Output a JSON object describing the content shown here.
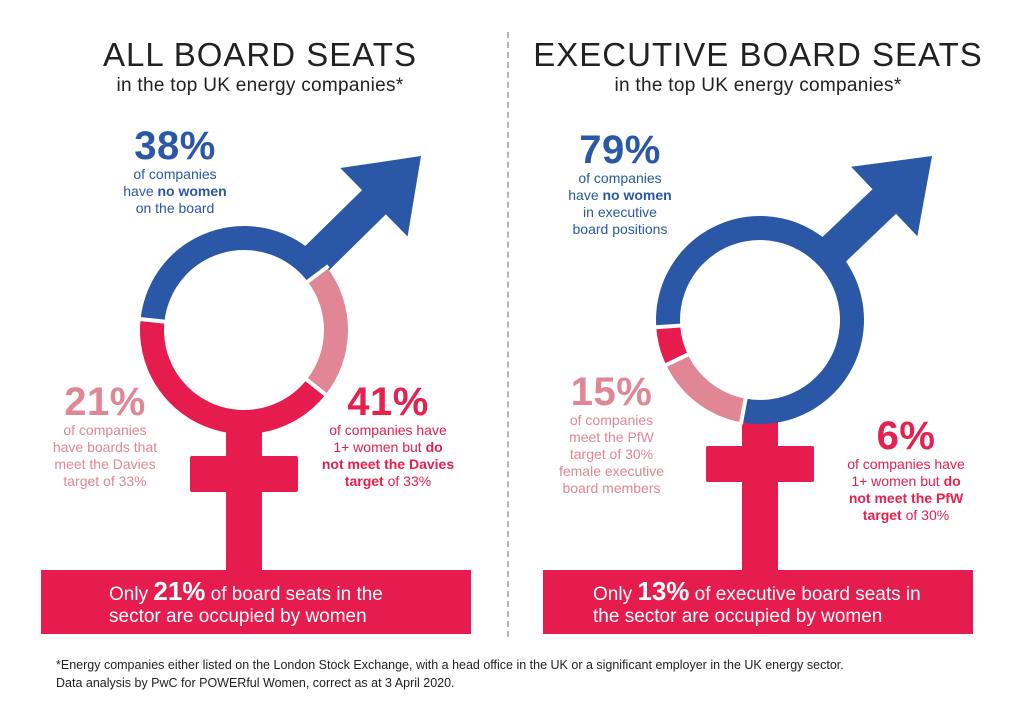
{
  "colors": {
    "no_women": "#2b58a6",
    "meet_target": "#e08694",
    "not_meet_target": "#e61b4e"
  },
  "left": {
    "title": "ALL BOARD SEATS",
    "subtitle": "in the top UK energy companies*",
    "no_women": {
      "pct": "38%",
      "line1": "of companies",
      "line2_pre": "have ",
      "line2_bold": "no women",
      "line3": "on the board"
    },
    "meet": {
      "pct": "21%",
      "line1": "of companies",
      "line2": "have boards that",
      "line3": "meet the Davies",
      "line4": "target of 33%"
    },
    "not_meet": {
      "pct": "41%",
      "line1": "of companies have",
      "line2_pre": "1+ women but ",
      "line2_bold": "do",
      "line3_bold": "not meet the Davies",
      "line4_bold": "target",
      "line4_post": " of 33%"
    },
    "banner": {
      "pre": "Only ",
      "big": "21%",
      "post": " of board seats in the",
      "line2": "sector are occupied by women"
    }
  },
  "right": {
    "title": "EXECUTIVE BOARD SEATS",
    "subtitle": "in the top UK energy companies*",
    "no_women": {
      "pct": "79%",
      "line1": "of companies",
      "line2_pre": "have ",
      "line2_bold": "no women",
      "line3": "in executive",
      "line4": "board positions"
    },
    "meet": {
      "pct": "15%",
      "line1": "of companies",
      "line2": "meet the PfW",
      "line3": "target of 30%",
      "line4": "female executive",
      "line5": "board members"
    },
    "not_meet": {
      "pct": "6%",
      "line1": "of companies have",
      "line2_pre": "1+ women but ",
      "line2_bold": "do",
      "line3_bold": "not meet the PfW",
      "line4_bold": "target",
      "line4_post": " of 30%"
    },
    "banner": {
      "pre": "Only ",
      "big": "13%",
      "post": " of executive board seats in",
      "line2": "the sector are occupied by women"
    }
  },
  "footnote": {
    "line1": "*Energy companies either listed on the London Stock Exchange, with a head office in the UK or a significant employer in the UK energy sector.",
    "line2": "Data analysis by PwC for POWERful Women, correct as at 3 April 2020."
  },
  "chart_data": [
    {
      "type": "pie",
      "title": "ALL BOARD SEATS",
      "subtitle": "in the top UK energy companies*",
      "categories": [
        "No women on the board",
        "Boards meet the Davies target of 33%",
        "1+ women but do not meet the Davies target of 33%"
      ],
      "values": [
        38,
        21,
        41
      ],
      "unit": "%"
    },
    {
      "type": "pie",
      "title": "EXECUTIVE BOARD SEATS",
      "subtitle": "in the top UK energy companies*",
      "categories": [
        "No women in executive board positions",
        "Meet the PfW target of 30% female executive board members",
        "1+ women but do not meet the PfW target of 30%"
      ],
      "values": [
        79,
        15,
        6
      ],
      "unit": "%"
    }
  ]
}
